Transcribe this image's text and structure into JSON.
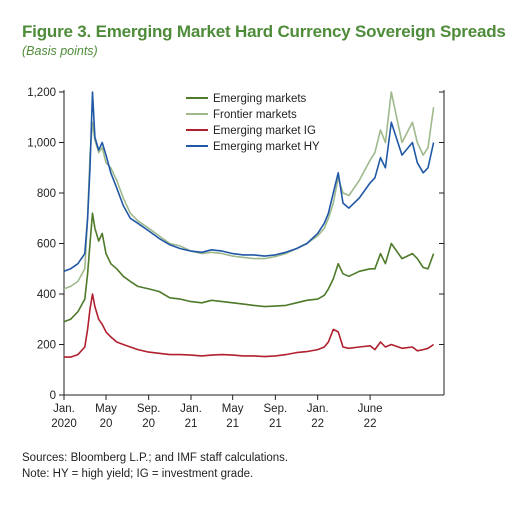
{
  "figure": {
    "title": "Figure 3. Emerging Market Hard Currency Sovereign Spreads",
    "subtitle": "(Basis points)"
  },
  "notes": {
    "sources": "Sources: Bloomberg L.P.; and IMF staff calculations.",
    "note": "Note: HY = high yield; IG = investment grade."
  },
  "chart_data": {
    "type": "line",
    "title": "Figure 3. Emerging Market Hard Currency Sovereign Spreads",
    "subtitle": "(Basis points)",
    "xlabel": "",
    "ylabel": "",
    "ylim": [
      0,
      1200
    ],
    "yticks": [
      0,
      200,
      400,
      600,
      800,
      1000,
      1200
    ],
    "ytick_labels": [
      "0",
      "200",
      "400",
      "600",
      "800",
      "1,000",
      "1,200"
    ],
    "xlim": [
      "2020-01",
      "2022-12"
    ],
    "xticks": [
      {
        "x": "2020-01",
        "line1": "Jan.",
        "line2": "2020"
      },
      {
        "x": "2020-05",
        "line1": "May",
        "line2": "20"
      },
      {
        "x": "2020-09",
        "line1": "Sep.",
        "line2": "20"
      },
      {
        "x": "2021-01",
        "line1": "Jan.",
        "line2": "21"
      },
      {
        "x": "2021-05",
        "line1": "May",
        "line2": "21"
      },
      {
        "x": "2021-09",
        "line1": "Sep.",
        "line2": "21"
      },
      {
        "x": "2022-01",
        "line1": "Jan.",
        "line2": "22"
      },
      {
        "x": "2022-06",
        "line1": "June",
        "line2": "22"
      }
    ],
    "grid": false,
    "legend_position": "top-center",
    "x": [
      "2020-01-01",
      "2020-01-20",
      "2020-02-10",
      "2020-03-01",
      "2020-03-09",
      "2020-03-16",
      "2020-03-23",
      "2020-03-30",
      "2020-04-10",
      "2020-04-20",
      "2020-05-01",
      "2020-05-15",
      "2020-06-01",
      "2020-06-20",
      "2020-07-10",
      "2020-08-01",
      "2020-09-01",
      "2020-10-01",
      "2020-11-01",
      "2020-12-01",
      "2021-01-01",
      "2021-02-01",
      "2021-03-01",
      "2021-04-01",
      "2021-05-01",
      "2021-06-01",
      "2021-07-01",
      "2021-08-01",
      "2021-09-01",
      "2021-10-01",
      "2021-11-01",
      "2021-12-01",
      "2022-01-01",
      "2022-01-20",
      "2022-02-01",
      "2022-02-15",
      "2022-03-01",
      "2022-03-15",
      "2022-04-01",
      "2022-05-01",
      "2022-06-01",
      "2022-06-15",
      "2022-07-01",
      "2022-07-15",
      "2022-08-01",
      "2022-09-01",
      "2022-10-01",
      "2022-10-15",
      "2022-11-01",
      "2022-11-15",
      "2022-12-01"
    ],
    "series": [
      {
        "name": "Emerging markets",
        "color": "#4e7a2a",
        "values": [
          290,
          300,
          330,
          380,
          480,
          600,
          720,
          660,
          610,
          640,
          560,
          520,
          500,
          470,
          450,
          430,
          420,
          410,
          385,
          380,
          370,
          365,
          375,
          370,
          365,
          360,
          355,
          350,
          352,
          355,
          365,
          375,
          380,
          395,
          420,
          460,
          520,
          480,
          470,
          490,
          500,
          500,
          560,
          520,
          600,
          540,
          560,
          540,
          505,
          500,
          560
        ]
      },
      {
        "name": "Frontier markets",
        "color": "#9fb98c",
        "values": [
          420,
          430,
          450,
          500,
          700,
          950,
          1080,
          1010,
          960,
          980,
          920,
          900,
          850,
          780,
          720,
          690,
          660,
          630,
          600,
          590,
          570,
          560,
          565,
          560,
          550,
          545,
          540,
          540,
          548,
          560,
          580,
          600,
          630,
          660,
          700,
          760,
          860,
          800,
          790,
          850,
          930,
          960,
          1050,
          1000,
          1200,
          1000,
          1080,
          1000,
          950,
          980,
          1140
        ]
      },
      {
        "name": "Emerging market IG",
        "color": "#b0202e",
        "values": [
          150,
          150,
          160,
          190,
          260,
          340,
          400,
          350,
          300,
          280,
          250,
          230,
          210,
          200,
          190,
          180,
          170,
          165,
          160,
          160,
          158,
          155,
          158,
          160,
          158,
          155,
          155,
          152,
          155,
          160,
          168,
          172,
          180,
          190,
          210,
          260,
          250,
          190,
          185,
          190,
          195,
          180,
          210,
          190,
          200,
          185,
          190,
          175,
          180,
          185,
          200
        ]
      },
      {
        "name": "Emerging market HY",
        "color": "#2158a6",
        "values": [
          490,
          500,
          520,
          560,
          700,
          900,
          1200,
          1020,
          970,
          1000,
          950,
          880,
          820,
          750,
          700,
          680,
          650,
          620,
          595,
          580,
          570,
          565,
          575,
          570,
          560,
          555,
          555,
          550,
          555,
          565,
          580,
          600,
          640,
          680,
          720,
          800,
          880,
          760,
          740,
          780,
          840,
          860,
          940,
          900,
          1080,
          950,
          1000,
          920,
          880,
          900,
          1000
        ]
      }
    ]
  }
}
